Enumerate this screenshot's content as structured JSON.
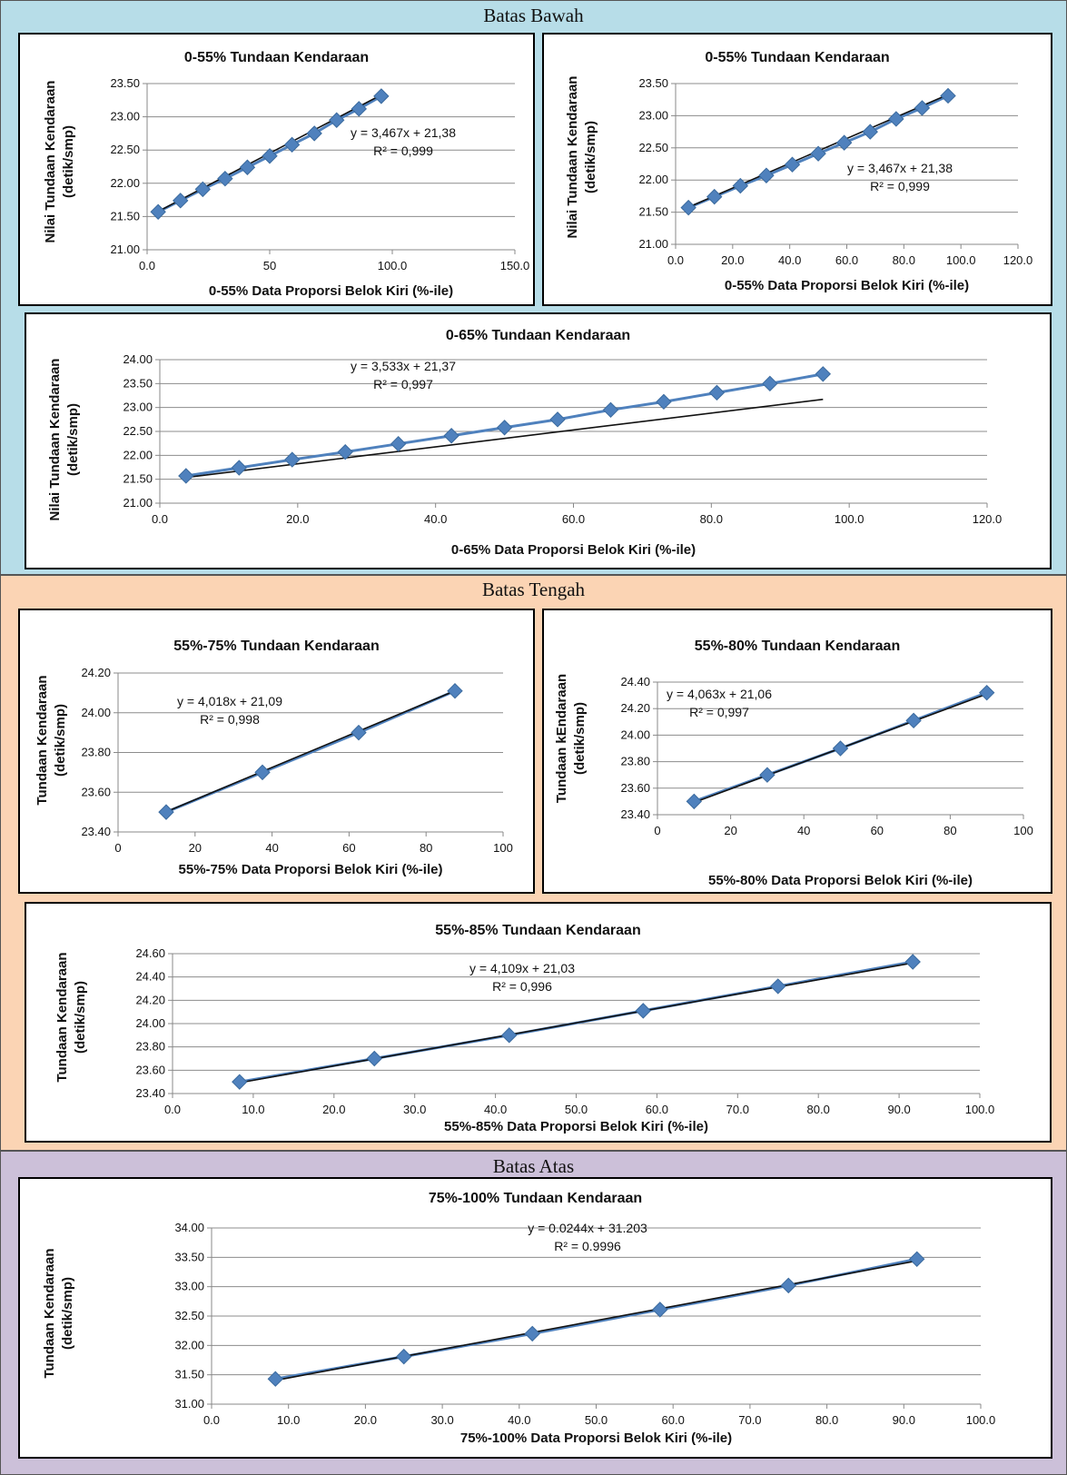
{
  "bands": [
    {
      "label": "Batas Bawah",
      "color": "#b7dde8"
    },
    {
      "label": "Batas Tengah",
      "color": "#fbd4b4"
    },
    {
      "label": "Batas Atas",
      "color": "#ccc0d9"
    }
  ],
  "chart_data": [
    {
      "type": "scatter",
      "title": "0-55% Tundaan Kendaraan",
      "xlabel": "0-55% Data Proporsi Belok Kiri (%-ile)",
      "ylabel": [
        "Nilai Tundaan Kendaraan",
        "(detik/smp)"
      ],
      "xlim": [
        0,
        150
      ],
      "xtick_step": 50,
      "xtick_decimals": 1,
      "xtick_labels_override": [
        "0.0",
        "50",
        "100.0",
        "150.0"
      ],
      "ylim": [
        21.0,
        23.5
      ],
      "ytick_step": 0.5,
      "ytick_decimals": 2,
      "x": [
        4.5,
        13.6,
        22.7,
        31.8,
        40.9,
        50.0,
        59.1,
        68.2,
        77.3,
        86.4,
        95.5
      ],
      "y": [
        21.57,
        21.74,
        21.91,
        22.07,
        22.24,
        22.41,
        22.58,
        22.75,
        22.95,
        23.12,
        23.31
      ],
      "trendline": {
        "slope": 0.01926,
        "intercept": 21.49
      },
      "equation": "y = 3,467x + 21,38",
      "r2": "R² = 0,999",
      "grid": "horizontal",
      "marker": "diamond",
      "color": "#4f81bd"
    },
    {
      "type": "scatter",
      "title": "0-55% Tundaan Kendaraan",
      "xlabel": "0-55% Data Proporsi Belok Kiri (%-ile)",
      "ylabel": [
        "Nilai Tundaan Kendaraan",
        "(detik/smp)"
      ],
      "xlim": [
        0,
        120
      ],
      "xtick_step": 20,
      "xtick_decimals": 1,
      "ylim": [
        21.0,
        23.5
      ],
      "ytick_step": 0.5,
      "ytick_decimals": 2,
      "x": [
        4.5,
        13.6,
        22.7,
        31.8,
        40.9,
        50.0,
        59.1,
        68.2,
        77.3,
        86.4,
        95.5
      ],
      "y": [
        21.57,
        21.74,
        21.91,
        22.07,
        22.24,
        22.41,
        22.58,
        22.75,
        22.95,
        23.12,
        23.31
      ],
      "trendline": {
        "slope": 0.01926,
        "intercept": 21.49
      },
      "equation": "y = 3,467x + 21,38",
      "r2": "R² = 0,999",
      "grid": "horizontal",
      "marker": "diamond",
      "color": "#4f81bd"
    },
    {
      "type": "scatter",
      "title": "0-65% Tundaan Kendaraan",
      "xlabel": "0-65% Data Proporsi Belok Kiri (%-ile)",
      "ylabel": [
        "Nilai Tundaan Kendaraan",
        "(detik/smp)"
      ],
      "xlim": [
        0,
        120
      ],
      "xtick_step": 20,
      "xtick_decimals": 1,
      "ylim": [
        21.0,
        24.0
      ],
      "ytick_step": 0.5,
      "ytick_decimals": 2,
      "x": [
        3.8,
        11.5,
        19.2,
        26.9,
        34.6,
        42.3,
        50.0,
        57.7,
        65.4,
        73.1,
        80.8,
        88.5,
        96.2
      ],
      "y": [
        21.57,
        21.74,
        21.91,
        22.07,
        22.24,
        22.41,
        22.58,
        22.75,
        22.95,
        23.12,
        23.31,
        23.5,
        23.7
      ],
      "trendline": {
        "slope": 0.01767,
        "intercept": 21.47
      },
      "equation": "y = 3,533x + 21,37",
      "r2": "R² = 0,997",
      "grid": "horizontal",
      "marker": "diamond",
      "color": "#4f81bd"
    },
    {
      "type": "scatter",
      "title": "55%-75% Tundaan Kendaraan",
      "xlabel": "55%-75% Data Proporsi Belok Kiri (%-ile)",
      "ylabel": [
        "Tundaan Kendaraan",
        "(detik/smp)"
      ],
      "xlim": [
        0,
        100
      ],
      "xtick_step": 20,
      "xtick_decimals": 0,
      "ylim": [
        23.4,
        24.2
      ],
      "ytick_step": 0.2,
      "ytick_decimals": 2,
      "x": [
        12.5,
        37.5,
        62.5,
        87.5
      ],
      "y": [
        23.5,
        23.7,
        23.9,
        24.11
      ],
      "trendline": {
        "slope": 0.00812,
        "intercept": 23.4
      },
      "equation": "y = 4,018x + 21,09",
      "r2": "R² = 0,998",
      "grid": "horizontal",
      "marker": "diamond",
      "color": "#4f81bd"
    },
    {
      "type": "scatter",
      "title": "55%-80% Tundaan Kendaraan",
      "xlabel": "55%-80% Data Proporsi Belok Kiri (%-ile)",
      "ylabel": [
        "Tundaan kEndaraan",
        "(detik/smp)"
      ],
      "xlim": [
        0,
        100
      ],
      "xtick_step": 20,
      "xtick_decimals": 0,
      "ylim": [
        23.4,
        24.4
      ],
      "ytick_step": 0.2,
      "ytick_decimals": 2,
      "x": [
        10,
        30,
        50,
        70,
        90
      ],
      "y": [
        23.5,
        23.7,
        23.9,
        24.11,
        24.32
      ],
      "trendline": {
        "slope": 0.01022,
        "intercept": 23.39
      },
      "equation": "y = 4,063x + 21,06",
      "r2": "R² = 0,997",
      "grid": "horizontal",
      "marker": "diamond",
      "color": "#4f81bd"
    },
    {
      "type": "scatter",
      "title": "55%-85% Tundaan Kendaraan",
      "xlabel": "55%-85% Data Proporsi Belok Kiri (%-ile)",
      "ylabel": [
        "Tundaan Kendaraan",
        "(detik/smp)"
      ],
      "xlim": [
        0,
        100
      ],
      "xtick_step": 10,
      "xtick_decimals": 1,
      "ylim": [
        23.4,
        24.6
      ],
      "ytick_step": 0.2,
      "ytick_decimals": 2,
      "x": [
        8.3,
        25.0,
        41.7,
        58.3,
        75.0,
        91.7
      ],
      "y": [
        23.5,
        23.7,
        23.9,
        24.11,
        24.32,
        24.53
      ],
      "trendline": {
        "slope": 0.01233,
        "intercept": 23.39
      },
      "equation": "y = 4,109x + 21,03",
      "r2": "R² = 0,996",
      "grid": "horizontal",
      "marker": "diamond",
      "color": "#4f81bd"
    },
    {
      "type": "scatter",
      "title": "75%-100% Tundaan Kendaraan",
      "xlabel": "75%-100% Data Proporsi Belok Kiri (%-ile)",
      "ylabel": [
        "Tundaan Kendaraan",
        "(detik/smp)"
      ],
      "xlim": [
        0,
        100
      ],
      "xtick_step": 10,
      "xtick_decimals": 1,
      "ylim": [
        31.0,
        34.0
      ],
      "ytick_step": 0.5,
      "ytick_decimals": 2,
      "x": [
        8.3,
        25.0,
        41.7,
        58.3,
        75.0,
        91.7
      ],
      "y": [
        31.43,
        31.81,
        32.2,
        32.61,
        33.02,
        33.47
      ],
      "trendline": {
        "slope": 0.0244,
        "intercept": 31.203
      },
      "equation": "y = 0.0244x + 31.203",
      "r2": "R² = 0.9996",
      "grid": "horizontal",
      "marker": "diamond",
      "color": "#4f81bd"
    }
  ]
}
